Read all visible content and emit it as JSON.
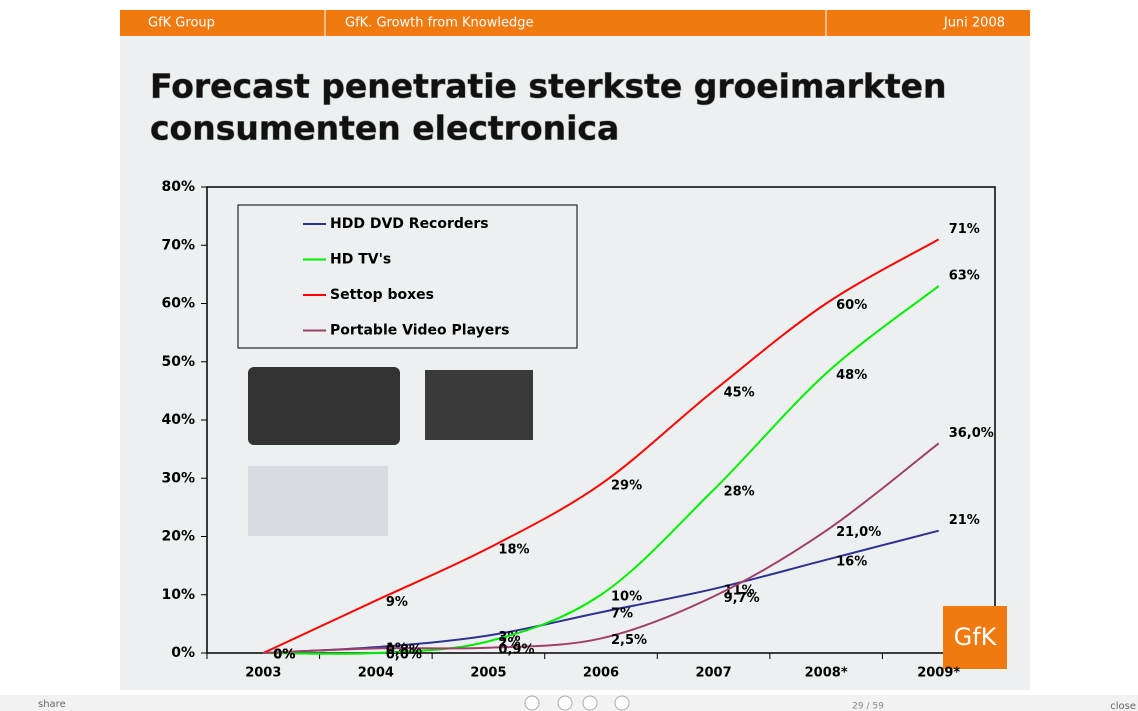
{
  "header": {
    "left": "GfK Group",
    "center": "GfK. Growth from Knowledge",
    "right": "Juni 2008"
  },
  "title": [
    "Forecast penetratie sterkste groeimarkten",
    "consumenten electronica"
  ],
  "logo": "GfK",
  "footer": {
    "share": "share",
    "page": "29 / 59",
    "close": "close"
  },
  "chart_data": {
    "type": "line",
    "categories": [
      "2003",
      "2004",
      "2005",
      "2006",
      "2007",
      "2008*",
      "2009*"
    ],
    "series": [
      {
        "name": "HDD DVD Recorders",
        "color": "#2e3192",
        "values": [
          0,
          1,
          3,
          7,
          11,
          16,
          21
        ],
        "value_labels": [
          "0%",
          "1%",
          "3%",
          "7%",
          "11%",
          "16%",
          "21%"
        ]
      },
      {
        "name": "HD TV's",
        "color": "#00ee00",
        "values": [
          0,
          0,
          2,
          10,
          28,
          48,
          63
        ],
        "value_labels": [
          "0%",
          "0,0%",
          "2%",
          "10%",
          "28%",
          "48%",
          "63%"
        ]
      },
      {
        "name": "Settop boxes",
        "color": "#ff0000",
        "values": [
          0,
          9,
          18,
          29,
          45,
          60,
          71
        ],
        "value_labels": [
          "0%",
          "9%",
          "18%",
          "29%",
          "45%",
          "60%",
          "71%"
        ]
      },
      {
        "name": "Portable Video Players",
        "color": "#a0406a",
        "values": [
          0,
          0.8,
          0.9,
          2.5,
          9.7,
          21.0,
          36.0
        ],
        "value_labels": [
          "0%",
          "0,8%",
          "0,9%",
          "2,5%",
          "9,7%",
          "21,0%",
          "36,0%"
        ]
      }
    ],
    "ylim": [
      0,
      80
    ],
    "yticks": [
      {
        "value": 0,
        "label": "0%"
      },
      {
        "value": 10,
        "label": "10%"
      },
      {
        "value": 20,
        "label": "20%"
      },
      {
        "value": 30,
        "label": "30%"
      },
      {
        "value": 40,
        "label": "40%"
      },
      {
        "value": 50,
        "label": "50%"
      },
      {
        "value": 60,
        "label": "60%"
      },
      {
        "value": 70,
        "label": "70%"
      },
      {
        "value": 80,
        "label": "80%"
      }
    ]
  }
}
